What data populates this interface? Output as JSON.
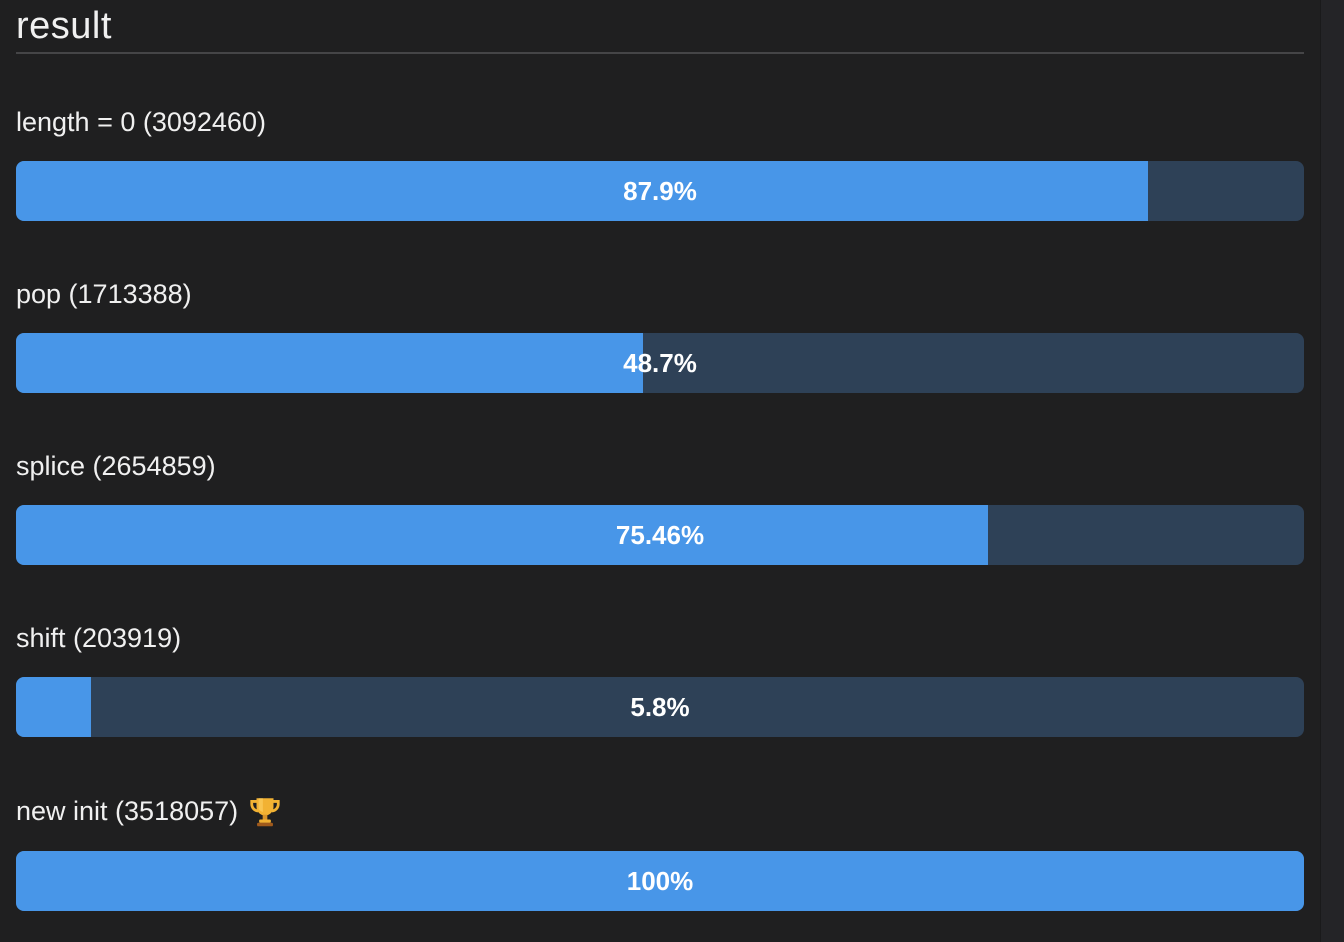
{
  "page": {
    "title": "result"
  },
  "colors": {
    "background": "#1f1f20",
    "bar_fill": "#4896e8",
    "bar_track": "#2e4157",
    "divider": "#454547",
    "text": "#f0f0f0",
    "percent_text": "#ffffff",
    "trophy_gold": "#f2b233",
    "trophy_base": "#a05a1c"
  },
  "results": [
    {
      "label": "length = 0 (3092460)",
      "percent": 87.9,
      "percent_label": "87.9%",
      "winner": false
    },
    {
      "label": "pop (1713388)",
      "percent": 48.7,
      "percent_label": "48.7%",
      "winner": false
    },
    {
      "label": "splice (2654859)",
      "percent": 75.46,
      "percent_label": "75.46%",
      "winner": false
    },
    {
      "label": "shift (203919)",
      "percent": 5.8,
      "percent_label": "5.8%",
      "winner": false
    },
    {
      "label": "new init (3518057)",
      "percent": 100,
      "percent_label": "100%",
      "winner": true,
      "icon": "trophy-icon"
    }
  ]
}
